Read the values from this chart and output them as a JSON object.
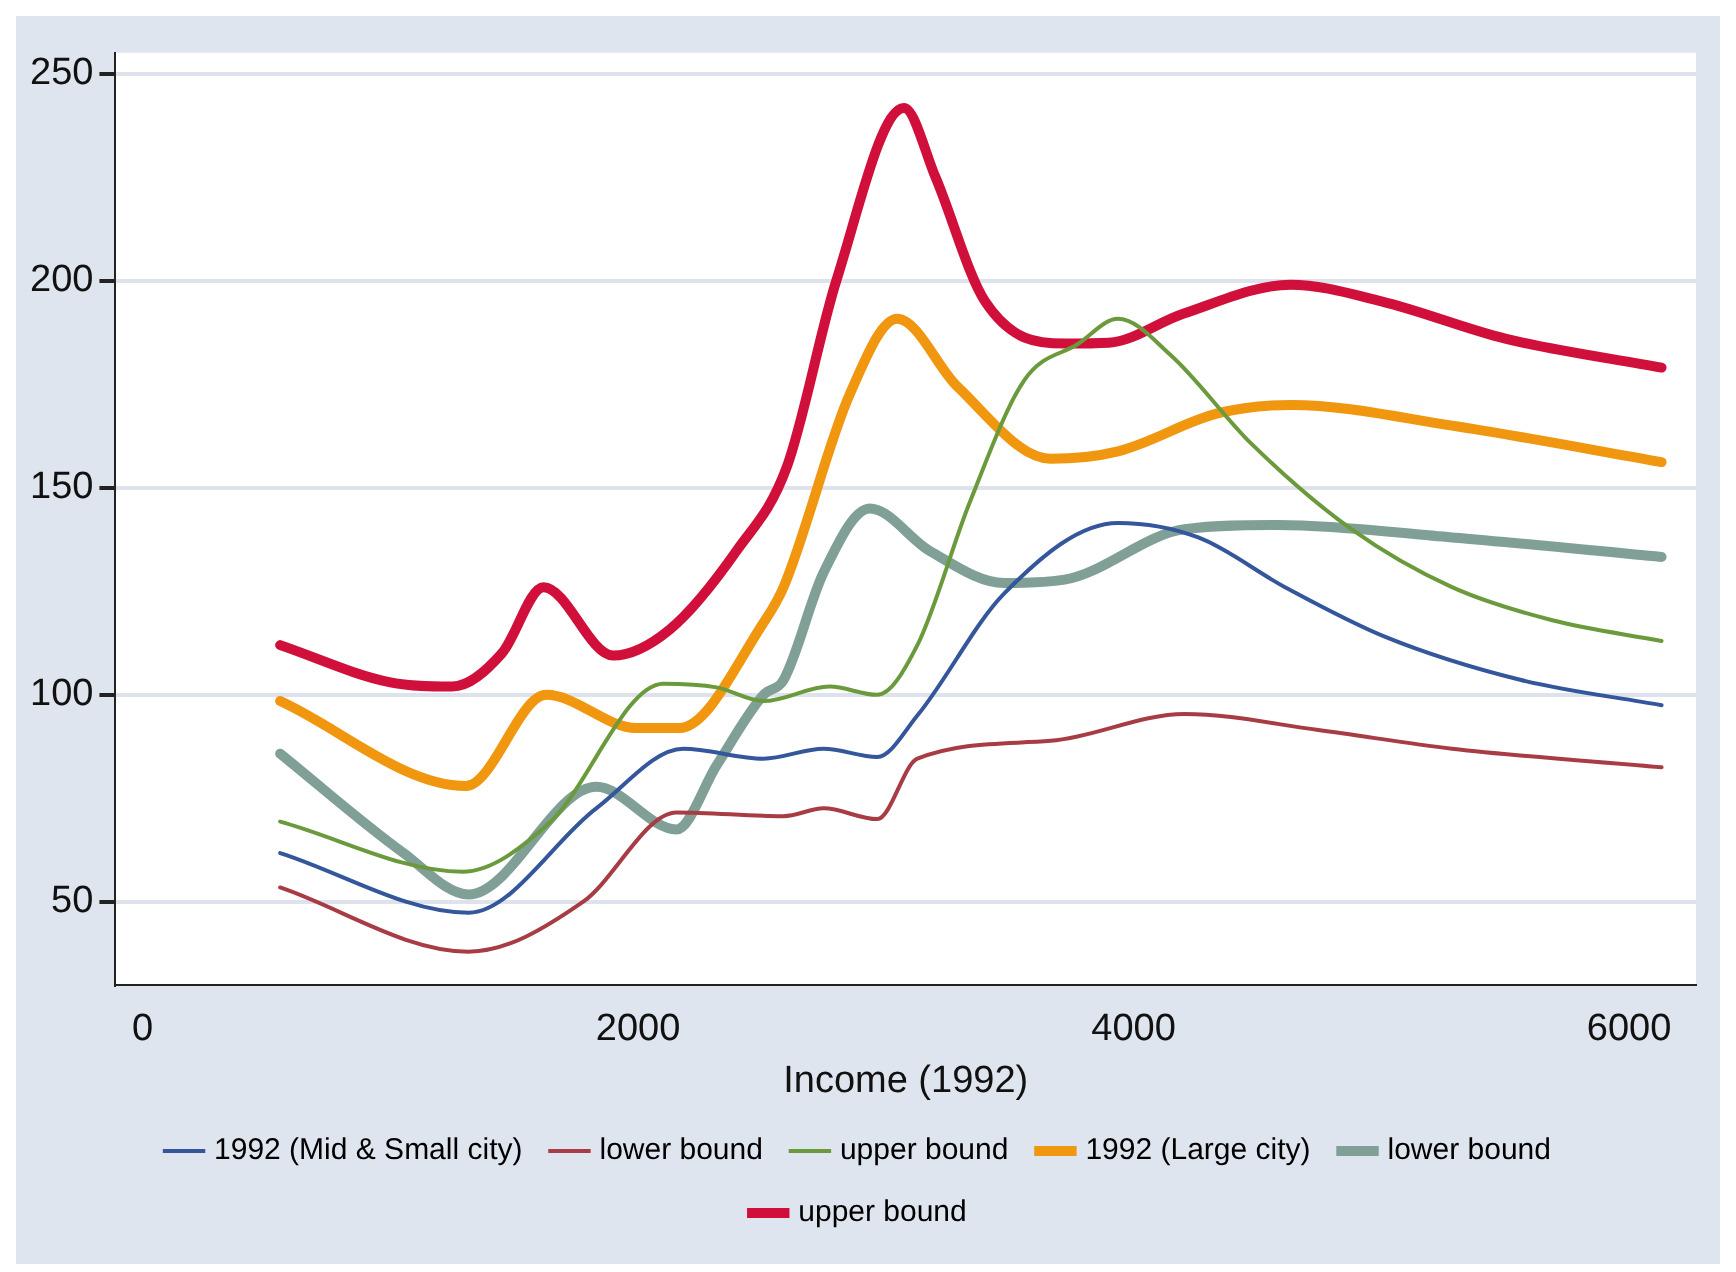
{
  "chart_data": {
    "type": "line",
    "xlabel": "Income (1992)",
    "xlim": [
      -110,
      6270
    ],
    "ylim": [
      30,
      255
    ],
    "xticks": [
      0,
      2000,
      4000,
      6000
    ],
    "yticks": [
      50,
      100,
      150,
      200,
      250
    ],
    "grid": "y",
    "legend": "bottom",
    "series": [
      {
        "name": "1992 (Mid & Small city)",
        "color": "#34569a",
        "x": [
          555,
          1316,
          1831,
          2182,
          2506,
          2749,
          2965,
          3127,
          3478,
          3937,
          4261,
          4611,
          5016,
          5556,
          6131
        ],
        "values": [
          61.8,
          47.4,
          72.6,
          87,
          84.6,
          87,
          85,
          95,
          124.5,
          141.5,
          138,
          126,
          114,
          103.7,
          97.5
        ]
      },
      {
        "name": "lower bound",
        "color": "#a83c44",
        "x": [
          555,
          1316,
          1777,
          2155,
          2587,
          2749,
          2965,
          3127,
          3665,
          4206,
          4746,
          5285,
          6131
        ],
        "values": [
          53.5,
          38,
          50,
          71.6,
          70.7,
          72.6,
          70,
          84.6,
          88.9,
          95.4,
          91.5,
          87,
          82.5
        ]
      },
      {
        "name": "upper bound",
        "color": "#6b9a3c",
        "x": [
          555,
          1291,
          1640,
          2101,
          2317,
          2506,
          2773,
          2965,
          3127,
          3340,
          3559,
          3775,
          3937,
          4150,
          4474,
          4879,
          5285,
          5690,
          6131
        ],
        "values": [
          69.4,
          57.3,
          69,
          102.7,
          101.8,
          98.5,
          102,
          100,
          112,
          146.7,
          176,
          184.7,
          190.8,
          182,
          160.7,
          140,
          126,
          118,
          113
        ]
      },
      {
        "name": "1992 (Large city)",
        "color": "#f0960f",
        "x": [
          555,
          1305,
          1629,
          1993,
          2166,
          2506,
          2587,
          2855,
          3046,
          3289,
          3665,
          3937,
          4342,
          4636,
          5285,
          6131
        ],
        "values": [
          98.5,
          78,
          100,
          92,
          92,
          117.4,
          126,
          172.7,
          190.8,
          174.4,
          157,
          158.8,
          168,
          170,
          165,
          156.2
        ]
      },
      {
        "name": "lower bound",
        "color": "#7f9f97",
        "x": [
          555,
          1049,
          1316,
          1831,
          2155,
          2317,
          2506,
          2587,
          2749,
          2935,
          3178,
          3478,
          3721,
          4206,
          4585,
          5285,
          6131
        ],
        "values": [
          85.8,
          62,
          51.8,
          77.8,
          67.5,
          83,
          100,
          103.6,
          129.6,
          145,
          134.7,
          127,
          127.8,
          140,
          141,
          138,
          133.3
        ]
      },
      {
        "name": "upper bound",
        "color": "#d0103a",
        "x": [
          555,
          1000,
          1250,
          1450,
          1618,
          1899,
          2126,
          2400,
          2600,
          2800,
          3073,
          3200,
          3400,
          3721,
          3900,
          4200,
          4634,
          5000,
          5500,
          6131
        ],
        "values": [
          112,
          103,
          102,
          110,
          126,
          109.5,
          115.7,
          135,
          155,
          200,
          241.7,
          225,
          195,
          184.8,
          185,
          192,
          199,
          195,
          186,
          179
        ]
      }
    ]
  }
}
